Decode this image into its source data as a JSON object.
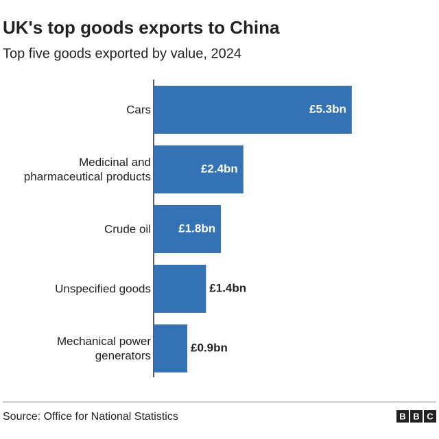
{
  "chart_data": {
    "type": "barh",
    "title": "UK's top goods exports to China",
    "subtitle": "Top five goods exported by value, 2024",
    "categories": [
      "Cars",
      "Medicinal and\npharmaceutical products",
      "Crude oil",
      "Unspecified goods",
      "Mechanical power\ngenerators"
    ],
    "values": [
      5.3,
      2.4,
      1.8,
      1.4,
      0.9
    ],
    "value_labels": [
      "£5.3bn",
      "£2.4bn",
      "£1.8bn",
      "£1.4bn",
      "£0.9bn"
    ],
    "color": "#3373b5",
    "source": "Source: Office for National Statistics",
    "logo": [
      "B",
      "B",
      "C"
    ]
  }
}
